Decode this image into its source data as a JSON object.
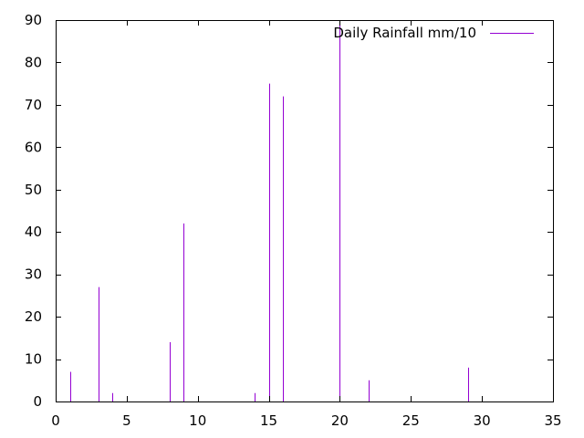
{
  "chart_data": {
    "type": "impulse",
    "title": "",
    "xlabel": "",
    "ylabel": "",
    "xlim": [
      0,
      35
    ],
    "ylim": [
      0,
      90
    ],
    "xticks": [
      0,
      5,
      10,
      15,
      20,
      25,
      30,
      35
    ],
    "yticks": [
      0,
      10,
      20,
      30,
      40,
      50,
      60,
      70,
      80,
      90
    ],
    "grid": false,
    "legend_position": "top-right",
    "series": [
      {
        "name": "Daily Rainfall mm/10",
        "color": "#9400d3",
        "points": [
          {
            "x": 1,
            "y": 7
          },
          {
            "x": 3,
            "y": 27
          },
          {
            "x": 4,
            "y": 2
          },
          {
            "x": 8,
            "y": 14
          },
          {
            "x": 9,
            "y": 42
          },
          {
            "x": 14,
            "y": 2
          },
          {
            "x": 15,
            "y": 75
          },
          {
            "x": 16,
            "y": 72
          },
          {
            "x": 20,
            "y": 90
          },
          {
            "x": 22,
            "y": 5
          },
          {
            "x": 29,
            "y": 8
          }
        ]
      }
    ]
  }
}
